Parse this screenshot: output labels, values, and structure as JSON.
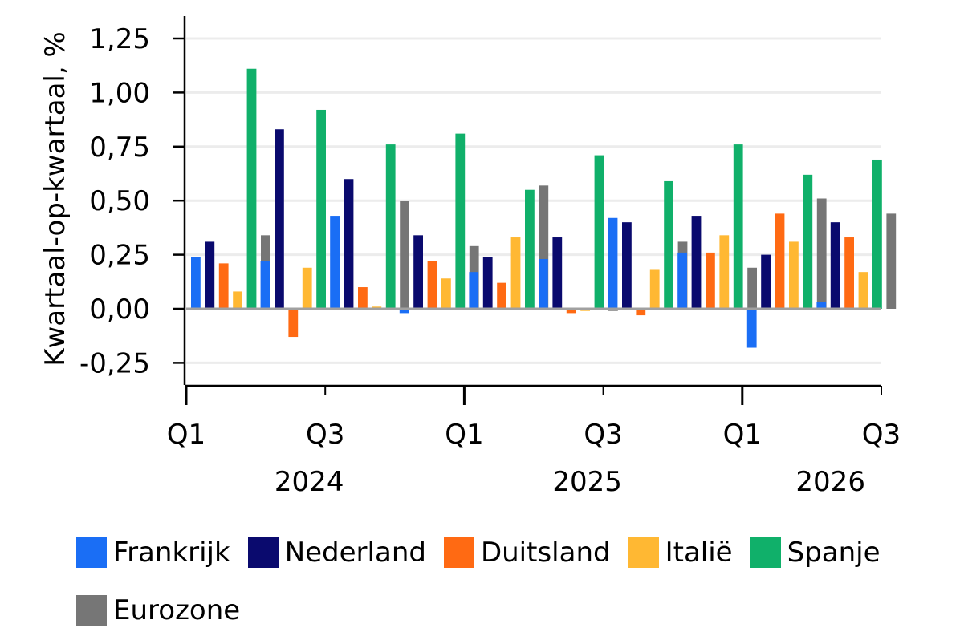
{
  "chart_data": {
    "type": "bar",
    "ylabel": "Kwartaal-op-kwartaal, %",
    "ylim": [
      -0.35,
      1.35
    ],
    "yticks": [
      -0.25,
      0,
      0.25,
      0.5,
      0.75,
      1.0,
      1.25
    ],
    "ytick_labels": [
      "-0,25",
      "0,00",
      "0,25",
      "0,50",
      "0,75",
      "1,00",
      "1,25"
    ],
    "categories": [
      "2024 Q1",
      "2024 Q2",
      "2024 Q3",
      "2024 Q4",
      "2025 Q1",
      "2025 Q2",
      "2025 Q3",
      "2025 Q4",
      "2026 Q1",
      "2026 Q2"
    ],
    "xtick_quarter_labels": [
      {
        "label": "Q1",
        "at": 0
      },
      {
        "label": "Q3",
        "at": 2
      },
      {
        "label": "Q1",
        "at": 4
      },
      {
        "label": "Q3",
        "at": 6
      },
      {
        "label": "Q1",
        "at": 8
      },
      {
        "label": "Q3",
        "at": 10
      }
    ],
    "xtick_year_labels": [
      {
        "label": "2024",
        "at": 2
      },
      {
        "label": "2025",
        "at": 6
      },
      {
        "label": "2026",
        "at": 9.5
      }
    ],
    "grid": true,
    "legend_position": "bottom",
    "series": [
      {
        "name": "Frankrijk",
        "color": "#1a6ef5",
        "values": [
          0.24,
          0.22,
          0.43,
          -0.02,
          0.17,
          0.23,
          0.42,
          0.26,
          -0.18,
          0.03
        ]
      },
      {
        "name": "Nederland",
        "color": "#0a0a6e",
        "values": [
          0.31,
          0.83,
          0.6,
          0.34,
          0.24,
          0.33,
          0.4,
          0.43,
          0.25,
          0.4
        ]
      },
      {
        "name": "Duitsland",
        "color": "#ff6a13",
        "values": [
          0.21,
          -0.13,
          0.1,
          0.22,
          0.12,
          -0.02,
          -0.03,
          0.26,
          0.44,
          0.33
        ]
      },
      {
        "name": "Italië",
        "color": "#ffb833",
        "values": [
          0.08,
          0.19,
          0.01,
          0.14,
          0.33,
          -0.01,
          0.18,
          0.34,
          0.31,
          0.17
        ]
      },
      {
        "name": "Spanje",
        "color": "#10b06a",
        "values": [
          1.11,
          0.92,
          0.76,
          0.81,
          0.55,
          0.71,
          0.59,
          0.76,
          0.62,
          0.69
        ]
      },
      {
        "name": "Eurozone",
        "color": "#767676",
        "values": [
          0.34,
          0.21,
          0.5,
          0.29,
          0.57,
          -0.01,
          0.31,
          0.19,
          0.51,
          0.44
        ]
      }
    ]
  }
}
